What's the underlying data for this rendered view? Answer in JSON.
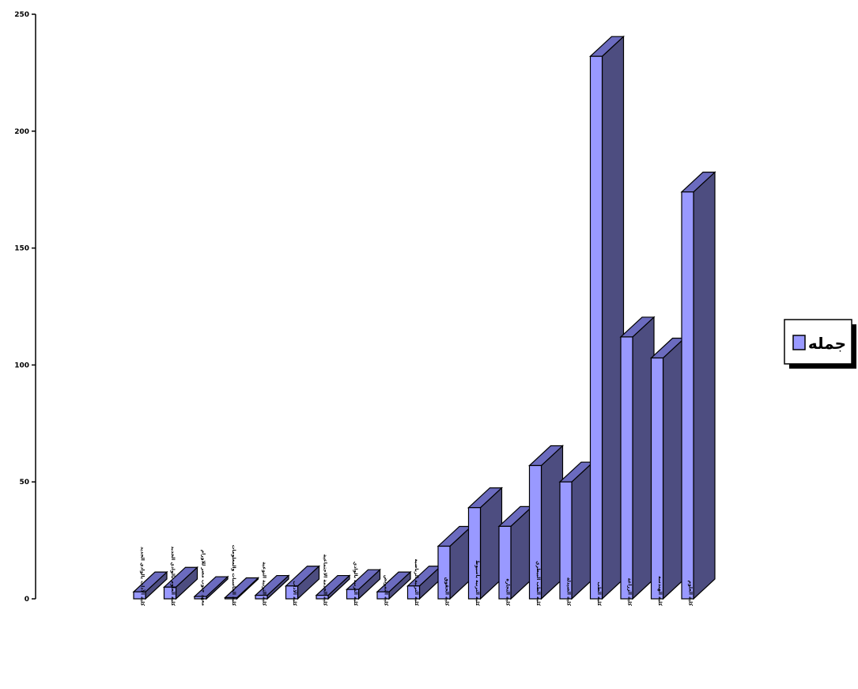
{
  "chart_data": {
    "type": "bar",
    "title": "",
    "xlabel": "",
    "ylabel": "",
    "ylim": [
      0,
      250
    ],
    "yticks": [
      0,
      50,
      100,
      150,
      200,
      250
    ],
    "grid": false,
    "legend_position": "right",
    "three_d": true,
    "colors": {
      "front": "#9999ff",
      "side": "#4d4d80",
      "top": "#6b6bbf",
      "outline": "#000000"
    },
    "categories": [
      "كلية الآداب بالوادي الجديد",
      "كلية العلوم بالوادي الجديد",
      "معهد جنوب مصر للاورام",
      "كلية الحاسبات والمعلومات",
      "كلية التربية النوعية",
      "كلية الاداب",
      "كلية الخدمة الاجتماعية",
      "كلية التربية بالوادي",
      "كلية التمريض",
      "كلية التربية الرياضية",
      "كلية الحقوق",
      "كلية التربية بأسيوط",
      "كلية التجارة",
      "كلية الطب البيطري",
      "كلية الصيدلة",
      "كلية الطب",
      "كلية الزراعة",
      "كلية الهندسة",
      "كلية العلوم"
    ],
    "series": [
      {
        "name": "جمله",
        "values": [
          3,
          5,
          1,
          0.5,
          1.5,
          5.5,
          1.5,
          4,
          3,
          5.5,
          22.5,
          39,
          31,
          57,
          50,
          232,
          112,
          103,
          174
        ]
      }
    ]
  },
  "legend": {
    "label": "جمله",
    "swatch_icon": "square-swatch-icon"
  }
}
